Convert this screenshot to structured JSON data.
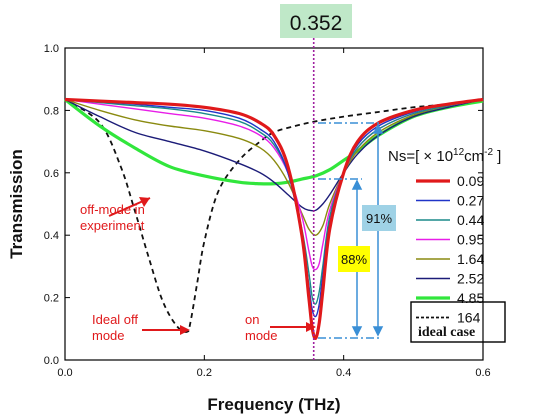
{
  "chart_data": {
    "type": "line",
    "title": "",
    "xlabel": "Frequency (THz)",
    "ylabel": "Transmission",
    "xlim": [
      0.0,
      0.6
    ],
    "ylim": [
      0.0,
      1.0
    ],
    "xticks": [
      "0.0",
      "0.2",
      "0.4",
      "0.6"
    ],
    "yticks": [
      "0.0",
      "0.2",
      "0.4",
      "0.6",
      "0.8",
      "1.0"
    ],
    "grid": false,
    "legend_title": "Ns=[ × 10",
    "legend_title_sup": "12",
    "legend_title_unit": "cm",
    "legend_title_unit_sup": "-2",
    "legend_title_end": "]",
    "legend_placement": "right",
    "series": [
      {
        "name": "0.09",
        "color": "#e0191b",
        "width": 3.2,
        "dashed": false,
        "x": [
          0.0,
          0.05,
          0.1,
          0.15,
          0.2,
          0.25,
          0.28,
          0.3,
          0.32,
          0.34,
          0.35,
          0.355,
          0.36,
          0.365,
          0.37,
          0.38,
          0.4,
          0.42,
          0.45,
          0.5,
          0.55,
          0.6
        ],
        "y": [
          0.835,
          0.83,
          0.825,
          0.82,
          0.81,
          0.79,
          0.76,
          0.72,
          0.62,
          0.4,
          0.2,
          0.1,
          0.07,
          0.12,
          0.22,
          0.42,
          0.6,
          0.7,
          0.76,
          0.8,
          0.82,
          0.835
        ]
      },
      {
        "name": "0.27",
        "color": "#2034c8",
        "width": 1.4,
        "dashed": false,
        "x": [
          0.0,
          0.05,
          0.1,
          0.15,
          0.2,
          0.25,
          0.28,
          0.3,
          0.32,
          0.34,
          0.35,
          0.355,
          0.36,
          0.365,
          0.37,
          0.38,
          0.4,
          0.42,
          0.45,
          0.5,
          0.55,
          0.6
        ],
        "y": [
          0.835,
          0.828,
          0.82,
          0.81,
          0.8,
          0.775,
          0.74,
          0.7,
          0.6,
          0.4,
          0.24,
          0.16,
          0.14,
          0.18,
          0.27,
          0.44,
          0.6,
          0.69,
          0.75,
          0.795,
          0.82,
          0.835
        ]
      },
      {
        "name": "0.44",
        "color": "#1a8a8a",
        "width": 1.4,
        "dashed": false,
        "x": [
          0.0,
          0.05,
          0.1,
          0.15,
          0.2,
          0.25,
          0.28,
          0.3,
          0.32,
          0.34,
          0.35,
          0.355,
          0.36,
          0.365,
          0.37,
          0.38,
          0.4,
          0.42,
          0.45,
          0.5,
          0.55,
          0.6
        ],
        "y": [
          0.835,
          0.825,
          0.815,
          0.805,
          0.79,
          0.765,
          0.73,
          0.69,
          0.6,
          0.42,
          0.28,
          0.2,
          0.18,
          0.22,
          0.3,
          0.46,
          0.6,
          0.68,
          0.74,
          0.79,
          0.815,
          0.835
        ]
      },
      {
        "name": "0.95",
        "color": "#e81ee8",
        "width": 1.4,
        "dashed": false,
        "x": [
          0.0,
          0.05,
          0.1,
          0.15,
          0.2,
          0.25,
          0.28,
          0.3,
          0.32,
          0.34,
          0.35,
          0.355,
          0.36,
          0.365,
          0.37,
          0.38,
          0.4,
          0.42,
          0.45,
          0.5,
          0.55,
          0.6
        ],
        "y": [
          0.835,
          0.82,
          0.805,
          0.79,
          0.775,
          0.75,
          0.72,
          0.68,
          0.6,
          0.46,
          0.35,
          0.3,
          0.29,
          0.31,
          0.37,
          0.48,
          0.6,
          0.68,
          0.74,
          0.79,
          0.815,
          0.835
        ]
      },
      {
        "name": "1.64",
        "color": "#8a8a10",
        "width": 1.4,
        "dashed": false,
        "x": [
          0.0,
          0.05,
          0.1,
          0.15,
          0.2,
          0.25,
          0.28,
          0.3,
          0.32,
          0.34,
          0.35,
          0.36,
          0.37,
          0.38,
          0.4,
          0.42,
          0.45,
          0.5,
          0.55,
          0.6
        ],
        "y": [
          0.835,
          0.8,
          0.77,
          0.75,
          0.735,
          0.71,
          0.68,
          0.64,
          0.57,
          0.47,
          0.42,
          0.4,
          0.43,
          0.5,
          0.6,
          0.67,
          0.73,
          0.785,
          0.815,
          0.835
        ]
      },
      {
        "name": "2.52",
        "color": "#1c1c78",
        "width": 1.4,
        "dashed": false,
        "x": [
          0.0,
          0.05,
          0.1,
          0.15,
          0.2,
          0.25,
          0.28,
          0.3,
          0.32,
          0.34,
          0.35,
          0.36,
          0.37,
          0.38,
          0.4,
          0.42,
          0.45,
          0.5,
          0.55,
          0.6
        ],
        "y": [
          0.835,
          0.78,
          0.73,
          0.7,
          0.67,
          0.63,
          0.6,
          0.57,
          0.53,
          0.49,
          0.48,
          0.48,
          0.5,
          0.53,
          0.6,
          0.66,
          0.72,
          0.78,
          0.81,
          0.835
        ]
      },
      {
        "name": "4.85",
        "color": "#31e63c",
        "width": 3.2,
        "dashed": false,
        "x": [
          0.0,
          0.05,
          0.1,
          0.15,
          0.2,
          0.25,
          0.28,
          0.3,
          0.32,
          0.34,
          0.36,
          0.38,
          0.4,
          0.42,
          0.45,
          0.5,
          0.55,
          0.6
        ],
        "y": [
          0.835,
          0.75,
          0.68,
          0.62,
          0.59,
          0.57,
          0.565,
          0.565,
          0.57,
          0.58,
          0.59,
          0.61,
          0.64,
          0.67,
          0.72,
          0.78,
          0.81,
          0.83
        ]
      },
      {
        "name": "164",
        "color": "#111111",
        "width": 1.8,
        "dashed": true,
        "x": [
          0.0,
          0.05,
          0.08,
          0.1,
          0.12,
          0.14,
          0.16,
          0.175,
          0.18,
          0.19,
          0.2,
          0.22,
          0.25,
          0.28,
          0.3,
          0.33,
          0.36,
          0.4,
          0.45,
          0.5,
          0.55,
          0.6
        ],
        "y": [
          0.835,
          0.76,
          0.62,
          0.48,
          0.33,
          0.19,
          0.11,
          0.09,
          0.12,
          0.25,
          0.38,
          0.54,
          0.64,
          0.7,
          0.73,
          0.75,
          0.765,
          0.78,
          0.795,
          0.81,
          0.82,
          0.835
        ]
      }
    ],
    "legend_last_label": "ideal case",
    "marker_value": "0.352",
    "marker_x": 0.357,
    "annotations": {
      "off_mode_experiment": "off-mode in experiment",
      "ideal_off_mode": "Ideal off mode",
      "on_mode": "on mode",
      "pct_88": "88%",
      "pct_91": "91%"
    },
    "colors": {
      "marker_box": "#bfe8c8",
      "marker_line": "#a020a0",
      "annotation_red": "#e0191b",
      "dim_line": "#3a8fd6",
      "box_88": "#ffff00",
      "box_91": "#9fd2e6"
    }
  }
}
